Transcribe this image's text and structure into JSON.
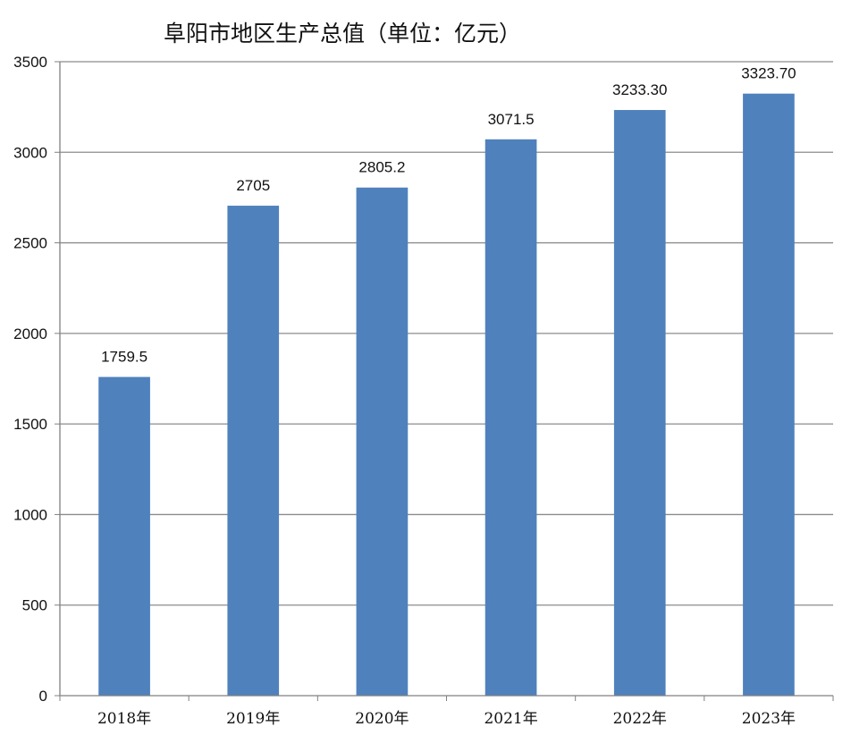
{
  "chart_data": {
    "type": "bar",
    "title": "阜阳市地区生产总值（单位：亿元）",
    "categories": [
      "2018年",
      "2019年",
      "2020年",
      "2021年",
      "2022年",
      "2023年"
    ],
    "values": [
      1759.5,
      2705,
      2805.2,
      3071.5,
      3233.3,
      3323.7
    ],
    "data_labels": [
      "1759.5",
      "2705",
      "2805.2",
      "3071.5",
      "3233.30",
      "3323.70"
    ],
    "yticks": [
      "0",
      "500",
      "1000",
      "1500",
      "2000",
      "2500",
      "3000",
      "3500"
    ],
    "ylim": [
      0,
      3500
    ],
    "grid": true,
    "legend": "none",
    "colors": {
      "bar": "#4f81bd",
      "grid": "#8c8c8c",
      "axis": "#808080"
    }
  }
}
